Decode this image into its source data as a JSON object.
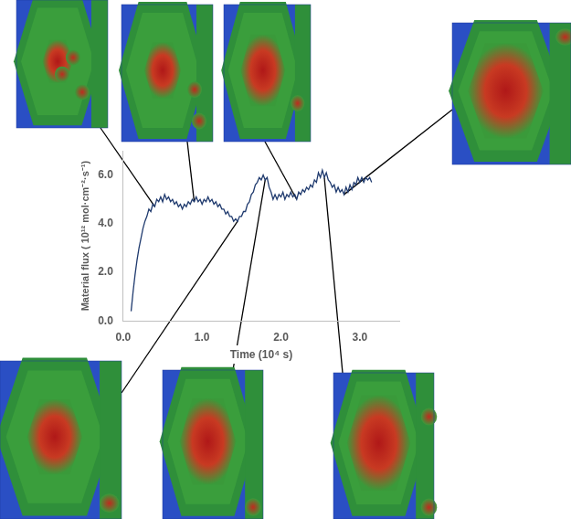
{
  "chart_data": {
    "type": "line",
    "xlabel": "Time (10⁴ s)",
    "ylabel": "Material flux ( 10¹² mol·cm⁻²·s⁻¹)",
    "x": [
      0.1,
      0.125,
      0.15,
      0.175,
      0.2,
      0.225,
      0.25,
      0.275,
      0.3,
      0.325,
      0.35,
      0.375,
      0.4,
      0.425,
      0.45,
      0.475,
      0.5,
      0.525,
      0.55,
      0.575,
      0.6,
      0.625,
      0.65,
      0.675,
      0.7,
      0.725,
      0.75,
      0.775,
      0.8,
      0.825,
      0.85,
      0.875,
      0.9,
      0.925,
      0.95,
      0.975,
      1.0,
      1.025,
      1.05,
      1.075,
      1.1,
      1.125,
      1.15,
      1.175,
      1.2,
      1.225,
      1.25,
      1.275,
      1.3,
      1.325,
      1.35,
      1.375,
      1.4,
      1.425,
      1.45,
      1.475,
      1.5,
      1.525,
      1.55,
      1.575,
      1.6,
      1.625,
      1.65,
      1.675,
      1.7,
      1.725,
      1.75,
      1.775,
      1.8,
      1.825,
      1.85,
      1.875,
      1.9,
      1.925,
      1.95,
      1.975,
      2.0,
      2.025,
      2.05,
      2.075,
      2.1,
      2.125,
      2.15,
      2.175,
      2.2,
      2.225,
      2.25,
      2.275,
      2.3,
      2.325,
      2.35,
      2.375,
      2.4,
      2.425,
      2.45,
      2.475,
      2.5,
      2.525,
      2.55,
      2.575,
      2.6,
      2.625,
      2.65,
      2.675,
      2.7,
      2.725,
      2.75,
      2.775,
      2.8,
      2.825,
      2.85,
      2.875,
      2.9,
      2.925,
      2.95,
      2.975,
      3.0,
      3.025,
      3.05,
      3.075,
      3.1,
      3.125,
      3.15
    ],
    "values": [
      0.4,
      1.2,
      1.9,
      2.5,
      3.0,
      3.4,
      3.8,
      4.1,
      4.3,
      4.6,
      4.5,
      4.8,
      4.7,
      5.0,
      4.9,
      5.1,
      4.9,
      5.2,
      5.0,
      5.1,
      4.9,
      5.0,
      4.8,
      4.9,
      4.7,
      4.8,
      4.6,
      4.8,
      4.7,
      4.9,
      4.8,
      5.0,
      4.9,
      5.1,
      4.9,
      5.0,
      4.8,
      5.0,
      4.9,
      5.1,
      4.9,
      5.0,
      4.8,
      4.9,
      4.7,
      4.8,
      4.6,
      4.6,
      4.4,
      4.5,
      4.3,
      4.3,
      4.1,
      4.2,
      4.1,
      4.3,
      4.3,
      4.5,
      4.5,
      4.8,
      4.9,
      5.2,
      5.3,
      5.6,
      5.7,
      5.9,
      5.8,
      6.0,
      5.8,
      5.9,
      5.5,
      5.3,
      5.0,
      5.2,
      5.0,
      5.2,
      5.1,
      5.3,
      5.0,
      5.2,
      5.1,
      5.3,
      5.1,
      5.2,
      5.0,
      5.3,
      5.2,
      5.4,
      5.3,
      5.5,
      5.4,
      5.6,
      5.5,
      5.8,
      5.7,
      6.1,
      5.9,
      6.2,
      5.9,
      6.1,
      5.8,
      5.7,
      5.5,
      5.6,
      5.3,
      5.5,
      5.3,
      5.4,
      5.2,
      5.5,
      5.3,
      5.6,
      5.4,
      5.7,
      5.6,
      5.9,
      5.7,
      5.9,
      5.7,
      5.9,
      5.8,
      5.9,
      5.7
    ],
    "color": "#1f3a6e",
    "xlim": [
      0,
      3.5
    ],
    "xticks": [
      {
        "value": 0,
        "label": "0.0"
      },
      {
        "value": 1,
        "label": "1.0"
      },
      {
        "value": 2,
        "label": "2.0"
      },
      {
        "value": 3,
        "label": "3.0"
      }
    ],
    "ylim": [
      0,
      7
    ],
    "yticks": [
      {
        "value": 0,
        "label": "0.0"
      },
      {
        "value": 2,
        "label": "2.0"
      },
      {
        "value": 4,
        "label": "4.0"
      },
      {
        "value": 6,
        "label": "6.0"
      }
    ],
    "grid": false
  }
}
